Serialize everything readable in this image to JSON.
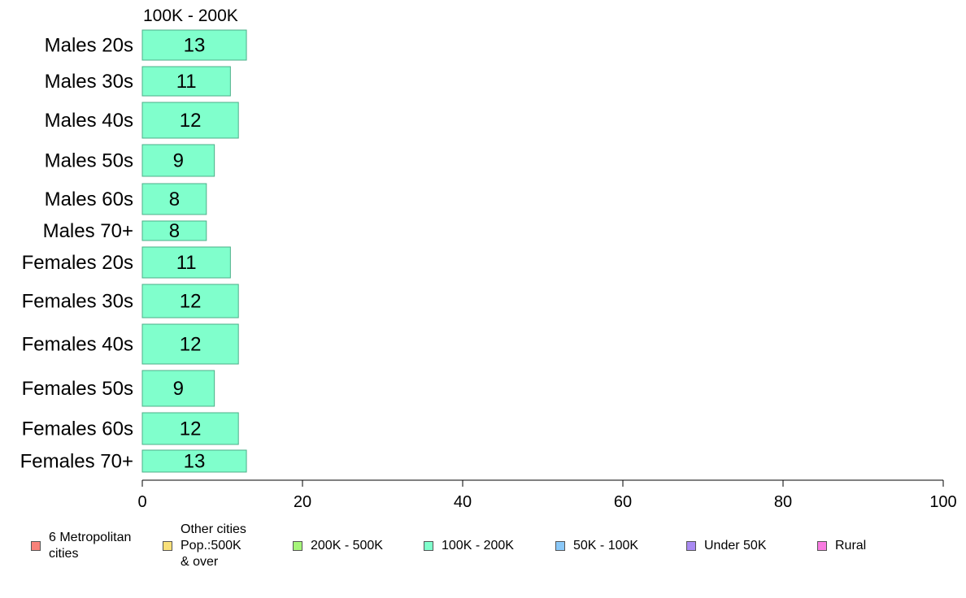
{
  "chart_data": {
    "type": "bar",
    "orientation": "horizontal",
    "title": "100K - 200K",
    "categories": [
      "Males 20s",
      "Males 30s",
      "Males 40s",
      "Males 50s",
      "Males 60s",
      "Males 70+",
      "Females 20s",
      "Females 30s",
      "Females 40s",
      "Females 50s",
      "Females 60s",
      "Females 70+"
    ],
    "values": [
      13,
      11,
      12,
      9,
      8,
      8,
      11,
      12,
      12,
      9,
      12,
      13
    ],
    "value_labels": [
      "13",
      "11",
      "12",
      "9",
      "8",
      "8",
      "11",
      "12",
      "12",
      "9",
      "12",
      "13"
    ],
    "xlim": [
      0,
      100
    ],
    "xticks": [
      0,
      20,
      40,
      60,
      80,
      100
    ],
    "xtick_labels": [
      "0",
      "20",
      "40",
      "60",
      "80",
      "100"
    ],
    "bar_color": "#80FFCC",
    "bar_border_color": "#4CAF88",
    "grid": false,
    "legend": {
      "placement": "bottom",
      "items": [
        {
          "label": "6 Metropolitan\n cities",
          "color": "#F8827A"
        },
        {
          "label": "Other cities\nPop.:500K\n & over",
          "color": "#F8E07A"
        },
        {
          "label": "200K - 500K",
          "color": "#A6F57A"
        },
        {
          "label": "100K - 200K",
          "color": "#80FFCC"
        },
        {
          "label": "50K - 100K",
          "color": "#8AC8F8"
        },
        {
          "label": "Under 50K",
          "color": "#A98AF2"
        },
        {
          "label": "Rural",
          "color": "#F87AE0"
        }
      ]
    }
  }
}
